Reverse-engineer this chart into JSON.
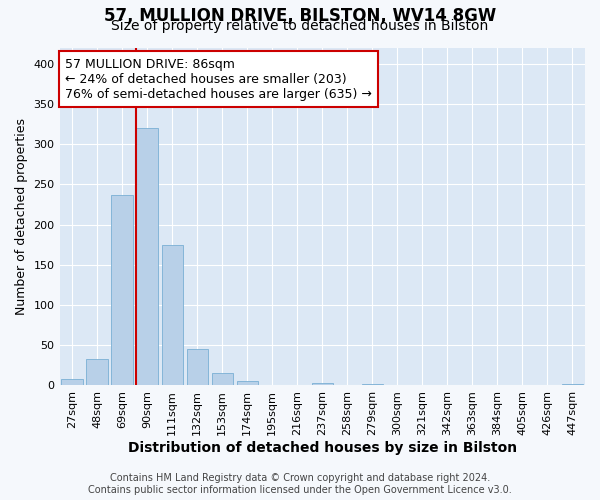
{
  "title_line1": "57, MULLION DRIVE, BILSTON, WV14 8GW",
  "title_line2": "Size of property relative to detached houses in Bilston",
  "xlabel": "Distribution of detached houses by size in Bilston",
  "ylabel": "Number of detached properties",
  "categories": [
    "27sqm",
    "48sqm",
    "69sqm",
    "90sqm",
    "111sqm",
    "132sqm",
    "153sqm",
    "174sqm",
    "195sqm",
    "216sqm",
    "237sqm",
    "258sqm",
    "279sqm",
    "300sqm",
    "321sqm",
    "342sqm",
    "363sqm",
    "384sqm",
    "405sqm",
    "426sqm",
    "447sqm"
  ],
  "values": [
    8,
    33,
    237,
    320,
    175,
    45,
    15,
    5,
    0,
    0,
    3,
    0,
    2,
    0,
    0,
    0,
    0,
    0,
    0,
    0,
    2
  ],
  "bar_color": "#b8d0e8",
  "bar_edge_color": "#7aafd4",
  "vline_color": "#cc0000",
  "vline_x_index": 3,
  "annotation_line1": "57 MULLION DRIVE: 86sqm",
  "annotation_line2": "← 24% of detached houses are smaller (203)",
  "annotation_line3": "76% of semi-detached houses are larger (635) →",
  "annotation_box_color": "#ffffff",
  "annotation_box_edge": "#cc0000",
  "ylim": [
    0,
    420
  ],
  "yticks": [
    0,
    50,
    100,
    150,
    200,
    250,
    300,
    350,
    400
  ],
  "bg_color": "#f5f8fc",
  "plot_bg_color": "#dce8f5",
  "grid_color": "#ffffff",
  "footer_line1": "Contains HM Land Registry data © Crown copyright and database right 2024.",
  "footer_line2": "Contains public sector information licensed under the Open Government Licence v3.0.",
  "title_fontsize": 12,
  "subtitle_fontsize": 10,
  "tick_fontsize": 8,
  "ylabel_fontsize": 9,
  "xlabel_fontsize": 10,
  "annotation_fontsize": 9,
  "footer_fontsize": 7
}
